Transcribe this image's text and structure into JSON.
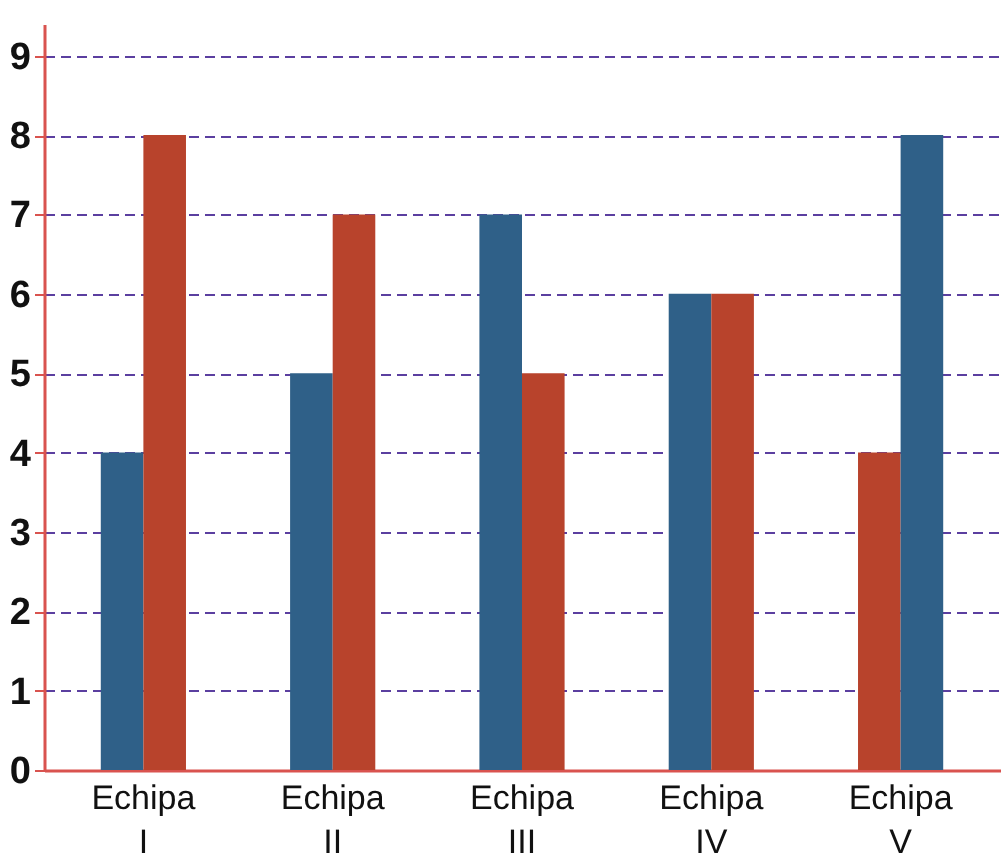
{
  "chart_data": {
    "type": "bar",
    "categories": [
      "Echipa\nI",
      "Echipa\nII",
      "Echipa\nIII",
      "Echipa\nIV",
      "Echipa\nV"
    ],
    "series": [
      {
        "colors": [
          "#2f6088",
          "#2f6088",
          "#2f6088",
          "#2f6088",
          "#b8432c"
        ],
        "values": [
          4,
          5,
          7,
          6,
          4
        ]
      },
      {
        "colors": [
          "#b8432c",
          "#b8432c",
          "#b8432c",
          "#b8432c",
          "#2f6088"
        ],
        "values": [
          8,
          7,
          5,
          6,
          8
        ]
      }
    ],
    "ylim": [
      0,
      9.4
    ],
    "yticks": [
      0,
      1,
      2,
      3,
      4,
      5,
      6,
      7,
      8,
      9
    ],
    "grid": "y"
  }
}
